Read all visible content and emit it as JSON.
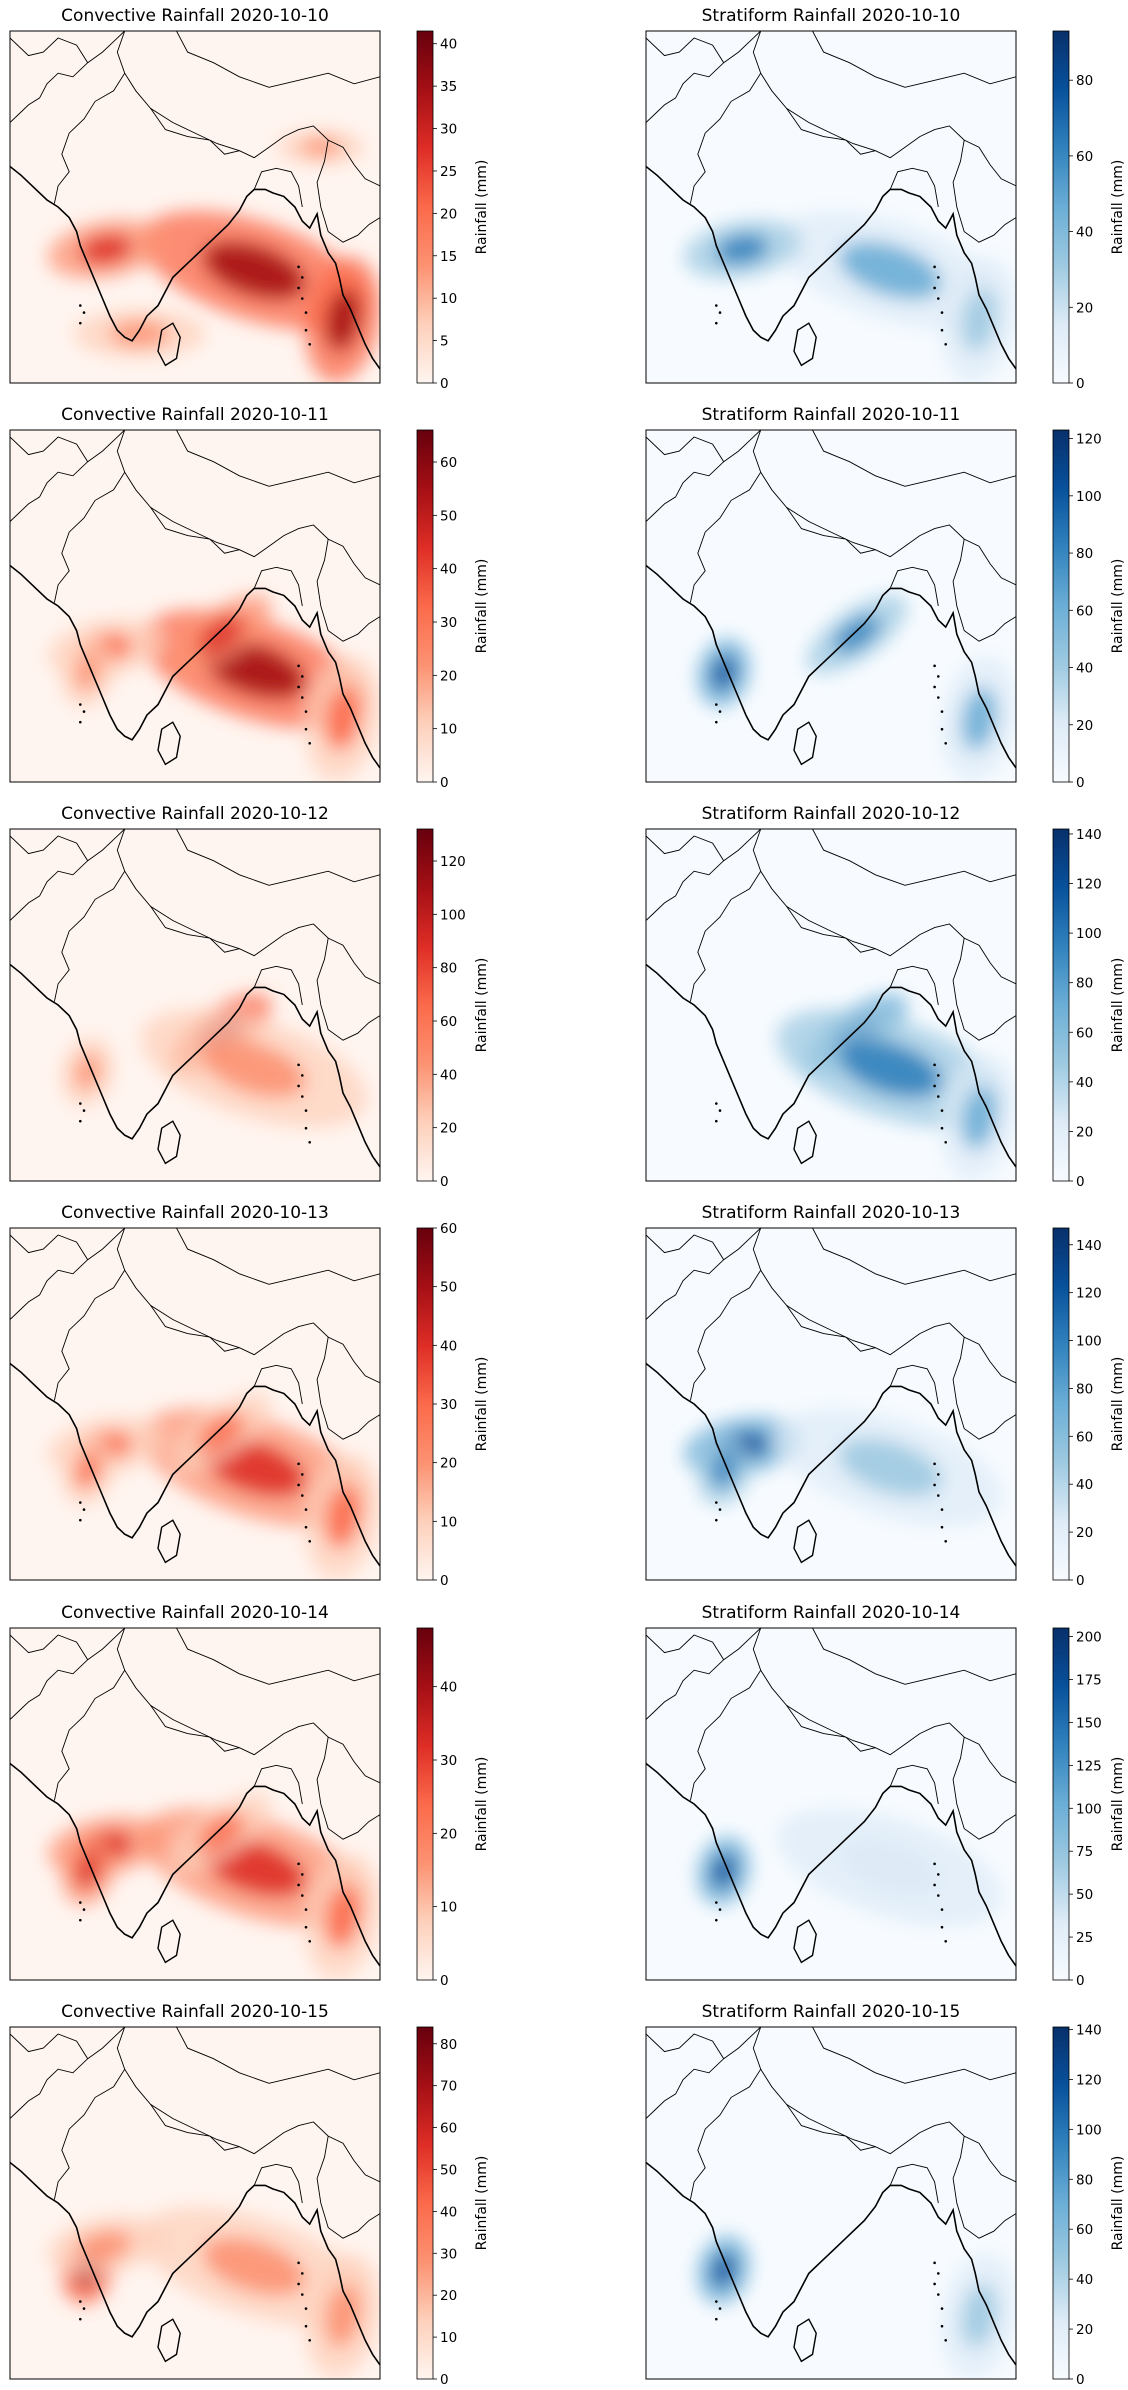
{
  "figure": {
    "colormaps": {
      "Reds": [
        "#fff5f0",
        "#fdd0bb",
        "#fc9272",
        "#fb6a4a",
        "#de2d26",
        "#a50f15",
        "#67000d"
      ],
      "Blues": [
        "#f7fbff",
        "#deebf7",
        "#9ecae1",
        "#6baed6",
        "#3182bd",
        "#08519c",
        "#08306b"
      ]
    },
    "colorbar_label": "Rainfall (mm)"
  },
  "chart_data": [
    {
      "type": "heatmap",
      "title": "Convective Rainfall 2020-10-10",
      "cmap": "Reds",
      "colorbar": {
        "label": "Rainfall (mm)",
        "vmin": 0,
        "vmax": 41.5,
        "ticks": [
          0,
          5,
          10,
          15,
          20,
          25,
          30,
          35,
          40
        ]
      },
      "hotspots": [
        {
          "region": "bay-of-bengal",
          "intensity": 0.75
        },
        {
          "region": "central-india-west",
          "intensity": 0.7
        },
        {
          "region": "andaman-sea",
          "intensity": 0.85
        },
        {
          "region": "southern-peninsula",
          "intensity": 0.35
        },
        {
          "region": "northeast",
          "intensity": 0.35
        }
      ]
    },
    {
      "type": "heatmap",
      "title": "Stratiform Rainfall 2020-10-10",
      "cmap": "Blues",
      "colorbar": {
        "label": "Rainfall (mm)",
        "vmin": 0,
        "vmax": 93,
        "ticks": [
          0,
          20,
          40,
          60,
          80
        ]
      },
      "hotspots": [
        {
          "region": "bay-of-bengal",
          "intensity": 0.45
        },
        {
          "region": "central-india-west",
          "intensity": 0.6
        },
        {
          "region": "andaman-sea",
          "intensity": 0.4
        }
      ]
    },
    {
      "type": "heatmap",
      "title": "Convective Rainfall 2020-10-11",
      "cmap": "Reds",
      "colorbar": {
        "label": "Rainfall (mm)",
        "vmin": 0,
        "vmax": 66,
        "ticks": [
          0,
          10,
          20,
          30,
          40,
          50,
          60
        ]
      },
      "hotspots": [
        {
          "region": "bay-of-bengal",
          "intensity": 0.75
        },
        {
          "region": "east-coast",
          "intensity": 0.7
        },
        {
          "region": "central-india-west",
          "intensity": 0.45
        },
        {
          "region": "andaman-sea",
          "intensity": 0.5
        },
        {
          "region": "west-coast",
          "intensity": 0.35
        }
      ]
    },
    {
      "type": "heatmap",
      "title": "Stratiform Rainfall 2020-10-11",
      "cmap": "Blues",
      "colorbar": {
        "label": "Rainfall (mm)",
        "vmin": 0,
        "vmax": 123,
        "ticks": [
          0,
          20,
          40,
          60,
          80,
          100,
          120
        ]
      },
      "hotspots": [
        {
          "region": "west-coast",
          "intensity": 0.75
        },
        {
          "region": "east-coast",
          "intensity": 0.6
        },
        {
          "region": "andaman-sea",
          "intensity": 0.55
        }
      ]
    },
    {
      "type": "heatmap",
      "title": "Convective Rainfall 2020-10-12",
      "cmap": "Reds",
      "colorbar": {
        "label": "Rainfall (mm)",
        "vmin": 0,
        "vmax": 132,
        "ticks": [
          0,
          20,
          40,
          60,
          80,
          100,
          120
        ]
      },
      "hotspots": [
        {
          "region": "east-coast",
          "intensity": 0.75
        },
        {
          "region": "bay-of-bengal",
          "intensity": 0.3
        },
        {
          "region": "west-coast",
          "intensity": 0.25
        }
      ]
    },
    {
      "type": "heatmap",
      "title": "Stratiform Rainfall 2020-10-12",
      "cmap": "Blues",
      "colorbar": {
        "label": "Rainfall (mm)",
        "vmin": 0,
        "vmax": 142,
        "ticks": [
          0,
          20,
          40,
          60,
          80,
          100,
          120,
          140
        ]
      },
      "hotspots": [
        {
          "region": "east-coast",
          "intensity": 0.8
        },
        {
          "region": "bay-of-bengal",
          "intensity": 0.6
        },
        {
          "region": "andaman-sea",
          "intensity": 0.45
        }
      ]
    },
    {
      "type": "heatmap",
      "title": "Convective Rainfall 2020-10-13",
      "cmap": "Reds",
      "colorbar": {
        "label": "Rainfall (mm)",
        "vmin": 0,
        "vmax": 60,
        "ticks": [
          0,
          10,
          20,
          30,
          40,
          50,
          60
        ]
      },
      "hotspots": [
        {
          "region": "bay-of-bengal",
          "intensity": 0.6
        },
        {
          "region": "east-coast",
          "intensity": 0.55
        },
        {
          "region": "central-india-west",
          "intensity": 0.5
        },
        {
          "region": "west-coast",
          "intensity": 0.5
        },
        {
          "region": "andaman-sea",
          "intensity": 0.5
        }
      ]
    },
    {
      "type": "heatmap",
      "title": "Stratiform Rainfall 2020-10-13",
      "cmap": "Blues",
      "colorbar": {
        "label": "Rainfall (mm)",
        "vmin": 0,
        "vmax": 147,
        "ticks": [
          0,
          20,
          40,
          60,
          80,
          100,
          120,
          140
        ]
      },
      "hotspots": [
        {
          "region": "central-india-west",
          "intensity": 0.85
        },
        {
          "region": "west-coast",
          "intensity": 0.7
        },
        {
          "region": "bay-of-bengal",
          "intensity": 0.25
        }
      ]
    },
    {
      "type": "heatmap",
      "title": "Convective Rainfall 2020-10-14",
      "cmap": "Reds",
      "colorbar": {
        "label": "Rainfall (mm)",
        "vmin": 0,
        "vmax": 48,
        "ticks": [
          0,
          10,
          20,
          30,
          40
        ]
      },
      "hotspots": [
        {
          "region": "central-india-west",
          "intensity": 0.7
        },
        {
          "region": "west-coast",
          "intensity": 0.7
        },
        {
          "region": "bay-of-bengal",
          "intensity": 0.6
        },
        {
          "region": "east-coast",
          "intensity": 0.55
        },
        {
          "region": "andaman-sea",
          "intensity": 0.45
        }
      ]
    },
    {
      "type": "heatmap",
      "title": "Stratiform Rainfall 2020-10-14",
      "cmap": "Blues",
      "colorbar": {
        "label": "Rainfall (mm)",
        "vmin": 0,
        "vmax": 205,
        "ticks": [
          0,
          25,
          50,
          75,
          100,
          125,
          150,
          175,
          200
        ]
      },
      "hotspots": [
        {
          "region": "west-coast",
          "intensity": 0.75
        },
        {
          "region": "bay-of-bengal",
          "intensity": 0.15
        }
      ]
    },
    {
      "type": "heatmap",
      "title": "Convective Rainfall 2020-10-15",
      "cmap": "Reds",
      "colorbar": {
        "label": "Rainfall (mm)",
        "vmin": 0,
        "vmax": 84,
        "ticks": [
          0,
          10,
          20,
          30,
          40,
          50,
          60,
          70,
          80
        ]
      },
      "hotspots": [
        {
          "region": "west-coast",
          "intensity": 0.75
        },
        {
          "region": "bay-of-bengal",
          "intensity": 0.35
        },
        {
          "region": "andaman-sea",
          "intensity": 0.35
        },
        {
          "region": "central-india-west",
          "intensity": 0.25
        }
      ]
    },
    {
      "type": "heatmap",
      "title": "Stratiform Rainfall 2020-10-15",
      "cmap": "Blues",
      "colorbar": {
        "label": "Rainfall (mm)",
        "vmin": 0,
        "vmax": 141,
        "ticks": [
          0,
          20,
          40,
          60,
          80,
          100,
          120,
          140
        ]
      },
      "hotspots": [
        {
          "region": "west-coast",
          "intensity": 0.85
        },
        {
          "region": "andaman-sea",
          "intensity": 0.35
        }
      ]
    }
  ]
}
